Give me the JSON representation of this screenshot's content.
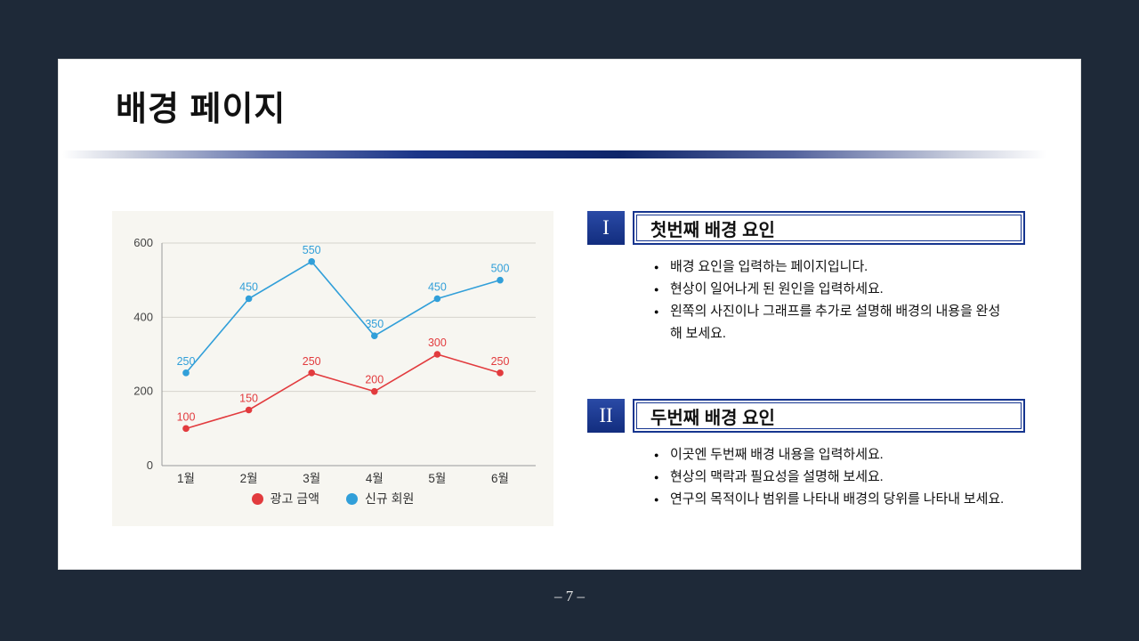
{
  "slide": {
    "title": "배경 페이지",
    "page_number_label": "– 7 –"
  },
  "chart_data": {
    "type": "line",
    "categories": [
      "1월",
      "2월",
      "3월",
      "4월",
      "5월",
      "6월"
    ],
    "series": [
      {
        "name": "광고 금액",
        "color": "#e23b3e",
        "values": [
          100,
          150,
          250,
          200,
          300,
          250
        ]
      },
      {
        "name": "신규 회원",
        "color": "#319fd9",
        "values": [
          250,
          450,
          550,
          350,
          450,
          500
        ]
      }
    ],
    "title": "",
    "xlabel": "",
    "ylabel": "",
    "ylim": [
      0,
      600
    ],
    "yticks": [
      0,
      200,
      400,
      600
    ],
    "grid": true,
    "legend_position": "bottom"
  },
  "sections": [
    {
      "numeral": "I",
      "title": "첫번째 배경 요인",
      "bullets": [
        "배경 요인을 입력하는 페이지입니다.",
        "현상이 일어나게 된 원인을 입력하세요.",
        "왼쪽의 사진이나 그래프를 추가로 설명해 배경의 내용을 완성해 보세요."
      ]
    },
    {
      "numeral": "II",
      "title": "두번째 배경 요인",
      "bullets": [
        "이곳엔 두번째 배경 내용을 입력하세요.",
        "현상의 맥락과 필요성을 설명해 보세요.",
        "연구의 목적이나 범위를 나타내 배경의 당위를 나타내 보세요."
      ]
    }
  ],
  "colors": {
    "accent_blue": "#16358f",
    "bg_dark": "#1e2938",
    "chart_bg": "#f7f6f1",
    "series_red": "#e23b3e",
    "series_blue": "#319fd9"
  }
}
